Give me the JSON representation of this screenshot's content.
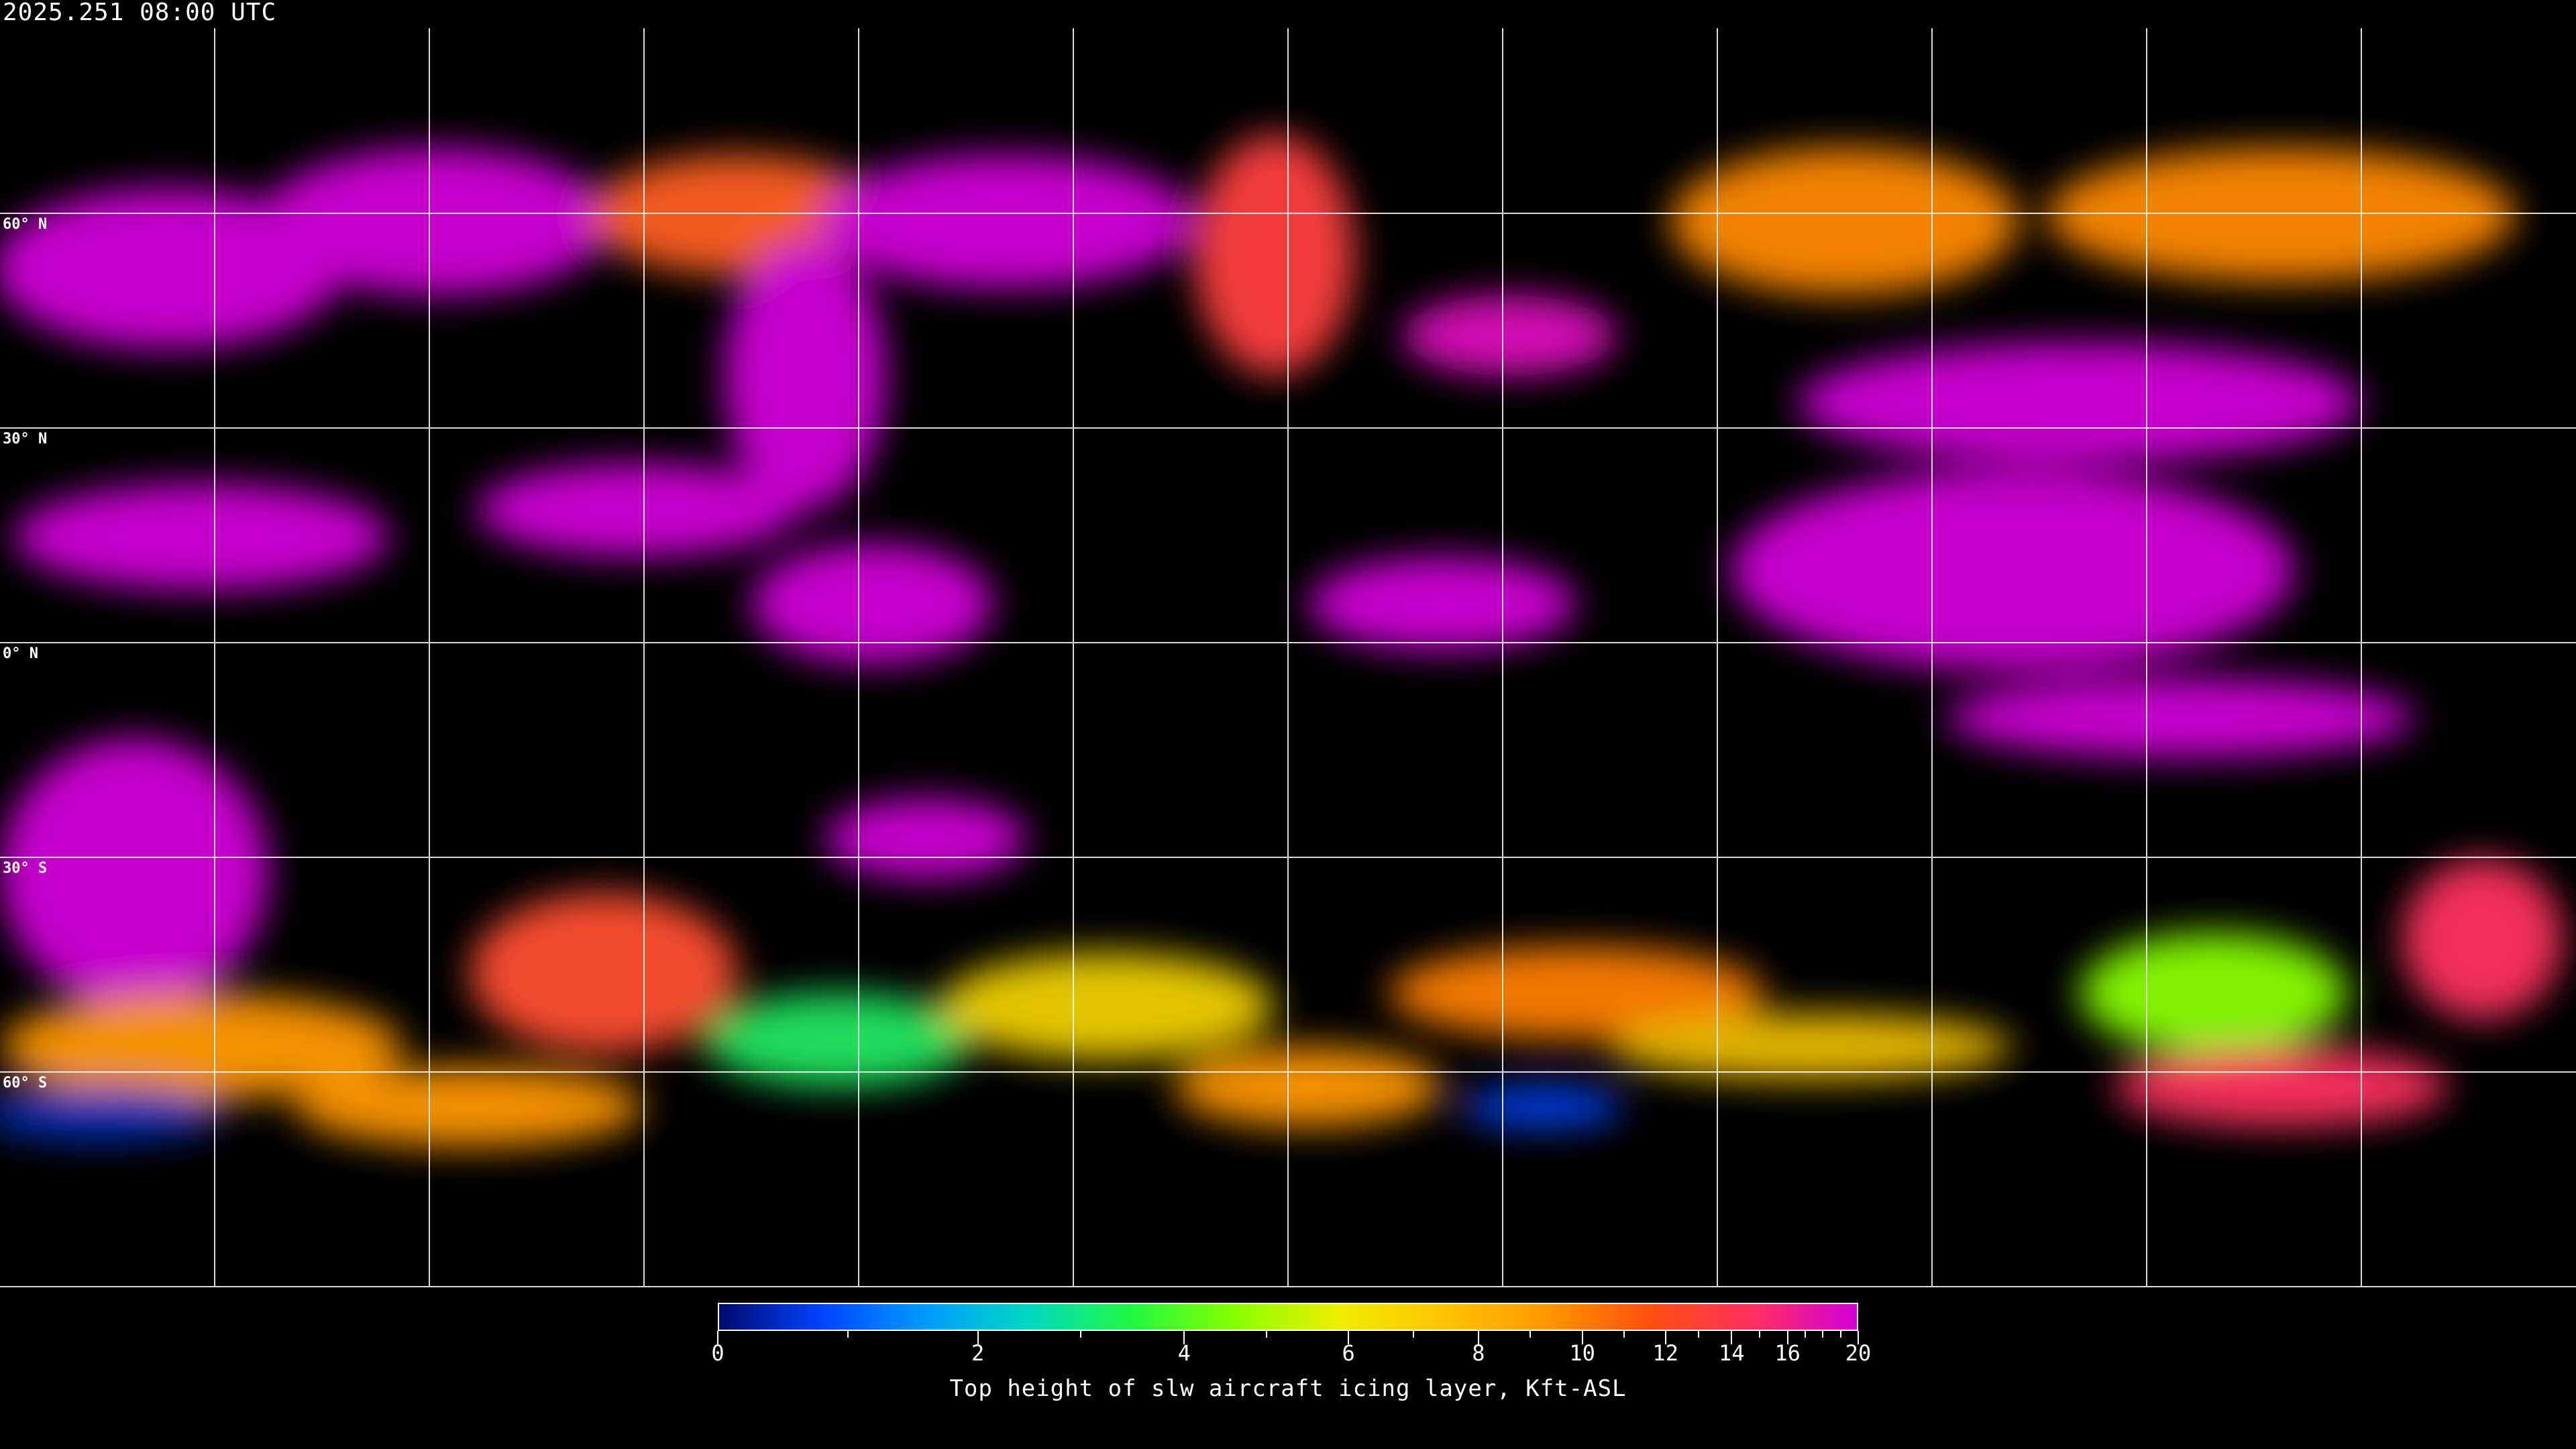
{
  "header": {
    "timestamp": "2025.251 08:00 UTC"
  },
  "map": {
    "projection": "equirectangular",
    "background": "#000000",
    "grid_color": "#ffffff",
    "coastline_color": "#ffffff",
    "latitude_labels": [
      "60° N",
      "30° N",
      "0° N",
      "30° S",
      "60° S"
    ]
  },
  "colorbar": {
    "label": "Top height of slw aircraft icing layer, Kft-ASL",
    "min": 0,
    "max": 20,
    "tick_labels": [
      "0",
      "2",
      "4",
      "6",
      "8",
      "10",
      "12",
      "14",
      "16",
      "20"
    ],
    "colors": [
      "#000a6e",
      "#0044ff",
      "#009cff",
      "#00d8c0",
      "#22f840",
      "#88ff00",
      "#f0ee00",
      "#ffc400",
      "#ff9800",
      "#ff5010",
      "#ff3060",
      "#d000d8"
    ]
  }
}
